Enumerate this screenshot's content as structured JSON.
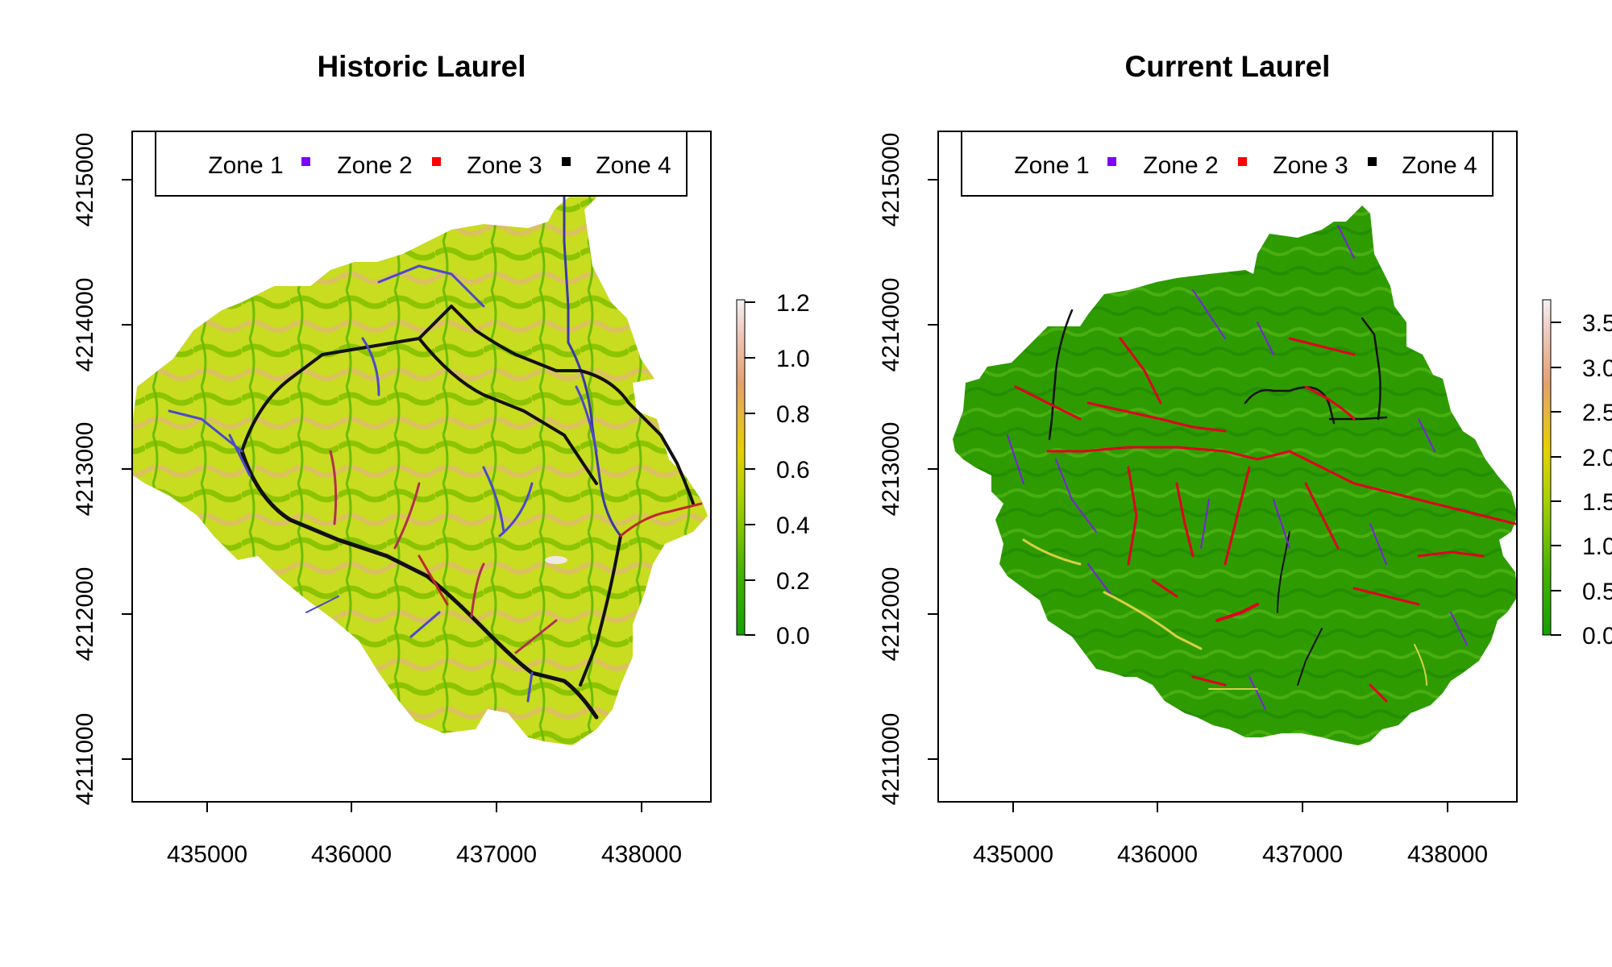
{
  "panels": [
    {
      "title": "Historic Laurel",
      "x_ticks": [
        "435000",
        "436000",
        "437000",
        "438000"
      ],
      "y_ticks": [
        "4211000",
        "4212000",
        "4213000",
        "4214000",
        "4215000"
      ],
      "legend": [
        "Zone 1",
        "Zone 2",
        "Zone 3",
        "Zone 4"
      ],
      "legend_colors": [
        "#ffffff",
        "#7f00ff",
        "#ff0000",
        "#000000"
      ],
      "colorbar_ticks": [
        "0.0",
        "0.2",
        "0.4",
        "0.6",
        "0.8",
        "1.0",
        "1.2"
      ]
    },
    {
      "title": "Current Laurel",
      "x_ticks": [
        "435000",
        "436000",
        "437000",
        "438000"
      ],
      "y_ticks": [
        "4211000",
        "4212000",
        "4213000",
        "4214000",
        "4215000"
      ],
      "legend": [
        "Zone 1",
        "Zone 2",
        "Zone 3",
        "Zone 4"
      ],
      "legend_colors": [
        "#ffffff",
        "#7f00ff",
        "#ff0000",
        "#000000"
      ],
      "colorbar_ticks": [
        "0.0",
        "0.5",
        "1.0",
        "1.5",
        "2.0",
        "2.5",
        "3.0",
        "3.5"
      ]
    }
  ]
}
